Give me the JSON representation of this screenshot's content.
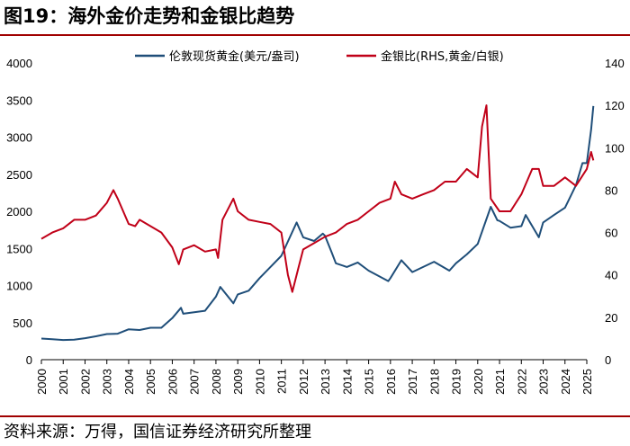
{
  "figure": {
    "title": "图19：海外金价走势和金银比趋势",
    "source": "资料来源：万得，国信证券经济研究所整理"
  },
  "chart_data": {
    "type": "line",
    "title": "图19：海外金价走势和金银比趋势",
    "xlabel": "",
    "ylabel": "",
    "x_ticks": [
      "2000",
      "2001",
      "2002",
      "2003",
      "2004",
      "2005",
      "2006",
      "2007",
      "2008",
      "2009",
      "2010",
      "2011",
      "2012",
      "2013",
      "2014",
      "2015",
      "2016",
      "2017",
      "2018",
      "2019",
      "2020",
      "2021",
      "2022",
      "2023",
      "2024",
      "2025"
    ],
    "left_axis": {
      "ylim": [
        0,
        4000
      ],
      "ticks": [
        "0",
        "500",
        "1000",
        "1500",
        "2000",
        "2500",
        "3000",
        "3500",
        "4000"
      ]
    },
    "right_axis": {
      "ylim": [
        0,
        140
      ],
      "ticks": [
        "0",
        "20",
        "40",
        "60",
        "80",
        "100",
        "120",
        "140"
      ]
    },
    "legend_position": "top-center",
    "series": [
      {
        "name": "伦敦现货黄金(美元/盎司)",
        "axis": "left",
        "color": "#1f4e79",
        "x": [
          2000.0,
          2000.5,
          2001.0,
          2001.5,
          2002.0,
          2002.5,
          2003.0,
          2003.5,
          2004.0,
          2004.5,
          2005.0,
          2005.5,
          2006.0,
          2006.4,
          2006.5,
          2007.0,
          2007.5,
          2008.0,
          2008.2,
          2008.8,
          2009.0,
          2009.5,
          2010.0,
          2010.5,
          2011.0,
          2011.7,
          2012.0,
          2012.5,
          2012.9,
          2013.0,
          2013.3,
          2013.5,
          2014.0,
          2014.5,
          2015.0,
          2015.9,
          2016.0,
          2016.5,
          2017.0,
          2017.5,
          2018.0,
          2018.7,
          2019.0,
          2019.5,
          2020.0,
          2020.6,
          2020.9,
          2021.0,
          2021.5,
          2022.0,
          2022.2,
          2022.8,
          2023.0,
          2023.5,
          2024.0,
          2024.5,
          2024.8,
          2025.0,
          2025.2,
          2025.3
        ],
        "values": [
          285,
          275,
          265,
          270,
          290,
          315,
          345,
          350,
          410,
          400,
          430,
          430,
          560,
          700,
          620,
          640,
          660,
          850,
          980,
          760,
          880,
          930,
          1100,
          1250,
          1400,
          1850,
          1650,
          1600,
          1700,
          1670,
          1450,
          1300,
          1250,
          1310,
          1200,
          1060,
          1100,
          1340,
          1180,
          1250,
          1320,
          1200,
          1300,
          1420,
          1560,
          2060,
          1880,
          1870,
          1780,
          1800,
          1950,
          1650,
          1850,
          1950,
          2050,
          2350,
          2650,
          2650,
          3100,
          3420
        ]
      },
      {
        "name": "金银比(RHS,黄金/白银)",
        "axis": "right",
        "color": "#c00018",
        "x": [
          2000.0,
          2000.5,
          2001.0,
          2001.5,
          2002.0,
          2002.5,
          2003.0,
          2003.3,
          2003.5,
          2004.0,
          2004.3,
          2004.5,
          2005.0,
          2005.5,
          2006.0,
          2006.3,
          2006.5,
          2007.0,
          2007.5,
          2008.0,
          2008.1,
          2008.3,
          2008.8,
          2009.0,
          2009.5,
          2010.0,
          2010.5,
          2011.0,
          2011.3,
          2011.5,
          2011.8,
          2012.0,
          2012.5,
          2013.0,
          2013.5,
          2014.0,
          2014.5,
          2015.0,
          2015.5,
          2016.0,
          2016.2,
          2016.5,
          2017.0,
          2017.5,
          2018.0,
          2018.5,
          2019.0,
          2019.5,
          2020.0,
          2020.2,
          2020.4,
          2020.6,
          2021.0,
          2021.5,
          2022.0,
          2022.5,
          2022.8,
          2023.0,
          2023.5,
          2024.0,
          2024.5,
          2025.0,
          2025.2,
          2025.3
        ],
        "values": [
          57,
          60,
          62,
          66,
          66,
          68,
          74,
          80,
          76,
          64,
          63,
          66,
          63,
          60,
          53,
          45,
          52,
          54,
          51,
          52,
          48,
          66,
          76,
          70,
          66,
          65,
          64,
          60,
          40,
          32,
          44,
          52,
          55,
          58,
          60,
          64,
          66,
          70,
          74,
          76,
          84,
          78,
          76,
          78,
          80,
          84,
          84,
          90,
          86,
          110,
          120,
          76,
          70,
          70,
          78,
          90,
          90,
          82,
          82,
          86,
          82,
          90,
          98,
          94
        ]
      }
    ]
  },
  "colors": {
    "gold": "#1f4e79",
    "ratio": "#c00018",
    "rule": "#a00000"
  },
  "legend": [
    {
      "label": "伦敦现货黄金(美元/盎司)",
      "color": "#1f4e79"
    },
    {
      "label": "金银比(RHS,黄金/白银)",
      "color": "#c00018"
    }
  ]
}
